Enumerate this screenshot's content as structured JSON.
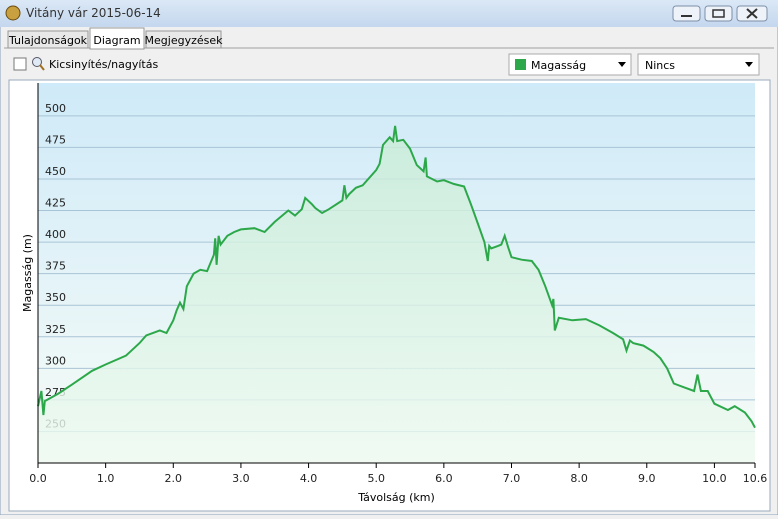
{
  "window": {
    "title": "Vitány vár 2015-06-14"
  },
  "tabs": [
    "Tulajdonságok",
    "Diagram",
    "Megjegyzések"
  ],
  "toolbar": {
    "zoom_label": "Kicsinyítés/nagyítás",
    "second_select": "Nincs"
  },
  "chart_data": {
    "type": "line",
    "xlabel": "Távolság (km)",
    "ylabel": "Magasság (m)",
    "x": [
      0.0,
      0.05,
      0.08,
      0.1,
      0.3,
      0.5,
      0.8,
      1.0,
      1.3,
      1.5,
      1.6,
      1.8,
      1.9,
      2.0,
      2.05,
      2.1,
      2.15,
      2.2,
      2.3,
      2.4,
      2.5,
      2.6,
      2.62,
      2.64,
      2.67,
      2.7,
      2.8,
      2.9,
      3.0,
      3.2,
      3.35,
      3.5,
      3.7,
      3.8,
      3.9,
      3.95,
      4.05,
      4.1,
      4.2,
      4.3,
      4.5,
      4.53,
      4.56,
      4.6,
      4.7,
      4.8,
      5.0,
      5.05,
      5.1,
      5.2,
      5.25,
      5.28,
      5.31,
      5.4,
      5.5,
      5.6,
      5.7,
      5.73,
      5.75,
      5.9,
      6.0,
      6.15,
      6.3,
      6.4,
      6.5,
      6.6,
      6.65,
      6.67,
      6.7,
      6.8,
      6.85,
      6.9,
      6.95,
      7.0,
      7.15,
      7.3,
      7.4,
      7.5,
      7.6,
      7.62,
      7.64,
      7.7,
      7.9,
      8.1,
      8.3,
      8.5,
      8.65,
      8.7,
      8.75,
      8.8,
      8.95,
      9.1,
      9.2,
      9.3,
      9.4,
      9.55,
      9.7,
      9.75,
      9.8,
      9.9,
      10.0,
      10.2,
      10.3,
      10.45,
      10.55,
      10.6
    ],
    "series": [
      {
        "name": "Magasság",
        "color": "#2ca84a",
        "values": [
          270,
          282,
          263,
          274,
          280,
          287,
          298,
          303,
          310,
          320,
          326,
          330,
          328,
          338,
          346,
          352,
          347,
          365,
          375,
          378,
          377,
          390,
          403,
          382,
          405,
          398,
          405,
          408,
          410,
          411,
          408,
          416,
          425,
          421,
          426,
          435,
          430,
          427,
          423,
          426,
          433,
          445,
          435,
          438,
          443,
          445,
          457,
          462,
          477,
          483,
          480,
          492,
          480,
          481,
          474,
          461,
          456,
          467,
          452,
          448,
          449,
          446,
          444,
          430,
          415,
          400,
          385,
          397,
          395,
          397,
          398,
          405,
          396,
          388,
          386,
          385,
          378,
          365,
          350,
          355,
          330,
          340,
          338,
          339,
          334,
          328,
          323,
          314,
          322,
          320,
          318,
          313,
          308,
          300,
          288,
          285,
          282,
          295,
          282,
          282,
          272,
          267,
          270,
          265,
          258,
          253
        ]
      }
    ],
    "xlim": [
      0,
      10.6
    ],
    "ylim": [
      225,
      526
    ],
    "xticks": [
      {
        "value": 0,
        "label": "0.0"
      },
      {
        "value": 1,
        "label": "1.0"
      },
      {
        "value": 2,
        "label": "2.0"
      },
      {
        "value": 3,
        "label": "3.0"
      },
      {
        "value": 4,
        "label": "4.0"
      },
      {
        "value": 5,
        "label": "5.0"
      },
      {
        "value": 6,
        "label": "6.0"
      },
      {
        "value": 7,
        "label": "7.0"
      },
      {
        "value": 8,
        "label": "8.0"
      },
      {
        "value": 9,
        "label": "9.0"
      },
      {
        "value": 10,
        "label": "10.0"
      },
      10.6
    ],
    "yticks": [
      250,
      275,
      300,
      325,
      350,
      375,
      400,
      425,
      450,
      475,
      500
    ],
    "grid": true
  }
}
